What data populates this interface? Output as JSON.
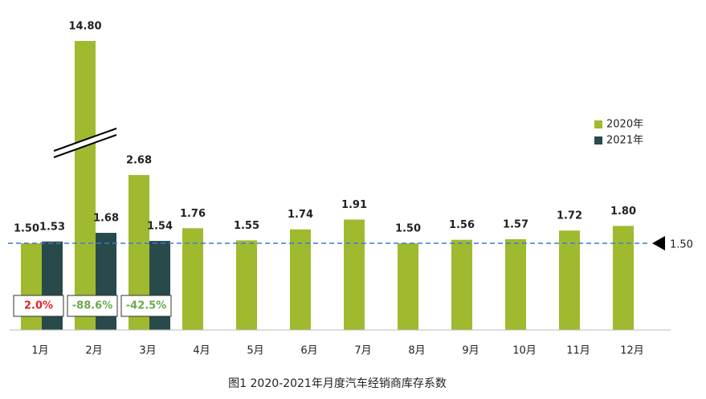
{
  "chart_data": {
    "type": "bar",
    "title": "图1  2020-2021年月度汽车经销商库存系数",
    "categories": [
      "1月",
      "2月",
      "3月",
      "4月",
      "5月",
      "6月",
      "7月",
      "8月",
      "9月",
      "10月",
      "11月",
      "12月"
    ],
    "series": [
      {
        "name": "2020年",
        "color": "#9fba2f",
        "values": [
          1.5,
          14.8,
          2.68,
          1.76,
          1.55,
          1.74,
          1.91,
          1.5,
          1.56,
          1.57,
          1.72,
          1.8
        ],
        "value_labels": [
          "1.50",
          "14.80",
          "2.68",
          "1.76",
          "1.55",
          "1.74",
          "1.91",
          "1.50",
          "1.56",
          "1.57",
          "1.72",
          "1.80"
        ]
      },
      {
        "name": "2021年",
        "color": "#284a4b",
        "values": [
          1.53,
          1.68,
          1.54,
          null,
          null,
          null,
          null,
          null,
          null,
          null,
          null,
          null
        ],
        "value_labels": [
          "1.53",
          "1.68",
          "1.54",
          null,
          null,
          null,
          null,
          null,
          null,
          null,
          null,
          null
        ]
      }
    ],
    "annotations": [
      {
        "text": "2.0%",
        "color": "#e8202a"
      },
      {
        "text": "-88.6%",
        "color": "#6aa84f"
      },
      {
        "text": "-42.5%",
        "color": "#6aa84f"
      }
    ],
    "reference_line": {
      "value": 1.5,
      "label": "1.50",
      "color": "#3a7bd5"
    },
    "ylim": [
      0,
      5
    ],
    "axis_break": true,
    "legend": "right"
  }
}
